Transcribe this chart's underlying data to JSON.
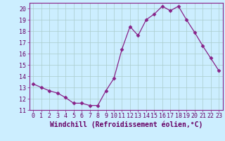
{
  "x": [
    0,
    1,
    2,
    3,
    4,
    5,
    6,
    7,
    8,
    9,
    10,
    11,
    12,
    13,
    14,
    15,
    16,
    17,
    18,
    19,
    20,
    21,
    22,
    23
  ],
  "y": [
    13.3,
    13.0,
    12.7,
    12.5,
    12.1,
    11.6,
    11.6,
    11.4,
    11.4,
    12.7,
    13.8,
    16.4,
    18.4,
    17.6,
    19.0,
    19.5,
    20.2,
    19.8,
    20.2,
    19.0,
    17.9,
    16.7,
    15.6,
    14.5
  ],
  "line_color": "#882288",
  "marker": "D",
  "marker_size": 2.5,
  "bg_color": "#cceeff",
  "grid_color": "#aacccc",
  "xlabel": "Windchill (Refroidissement éolien,°C)",
  "xlabel_color": "#660066",
  "tick_color": "#660066",
  "ylim": [
    11,
    20.5
  ],
  "xlim": [
    -0.5,
    23.5
  ],
  "yticks": [
    11,
    12,
    13,
    14,
    15,
    16,
    17,
    18,
    19,
    20
  ],
  "xticks": [
    0,
    1,
    2,
    3,
    4,
    5,
    6,
    7,
    8,
    9,
    10,
    11,
    12,
    13,
    14,
    15,
    16,
    17,
    18,
    19,
    20,
    21,
    22,
    23
  ],
  "spine_color": "#882288",
  "label_fontsize": 7,
  "tick_fontsize": 6
}
